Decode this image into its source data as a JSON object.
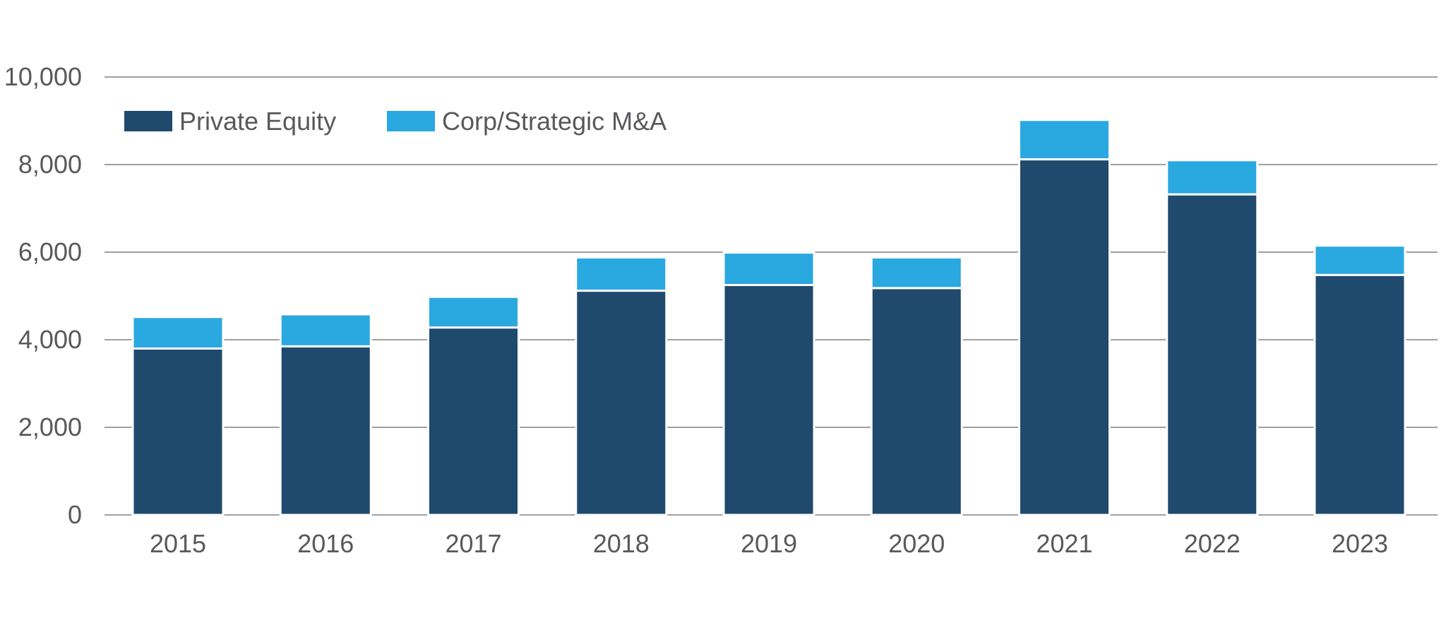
{
  "chart_data": {
    "type": "bar",
    "stacked": true,
    "categories": [
      "2015",
      "2016",
      "2017",
      "2018",
      "2019",
      "2020",
      "2021",
      "2022",
      "2023"
    ],
    "series": [
      {
        "name": "Private Equity",
        "color": "#1f4a6e",
        "values": [
          3800,
          3850,
          4280,
          5120,
          5250,
          5180,
          8120,
          7320,
          5480
        ]
      },
      {
        "name": "Corp/Strategic M&A",
        "color": "#2aa8e0",
        "values": [
          720,
          730,
          700,
          760,
          740,
          700,
          900,
          780,
          670
        ]
      }
    ],
    "ylim": [
      0,
      10000
    ],
    "yticks": [
      0,
      2000,
      4000,
      6000,
      8000,
      10000
    ],
    "ytick_labels": [
      "0",
      "2,000",
      "4,000",
      "6,000",
      "8,000",
      "10,000"
    ],
    "title": "",
    "xlabel": "",
    "ylabel": "",
    "grid": true,
    "legend_position": "top-left",
    "gridline_color": "#808080",
    "axis_text_color": "#58595b"
  }
}
